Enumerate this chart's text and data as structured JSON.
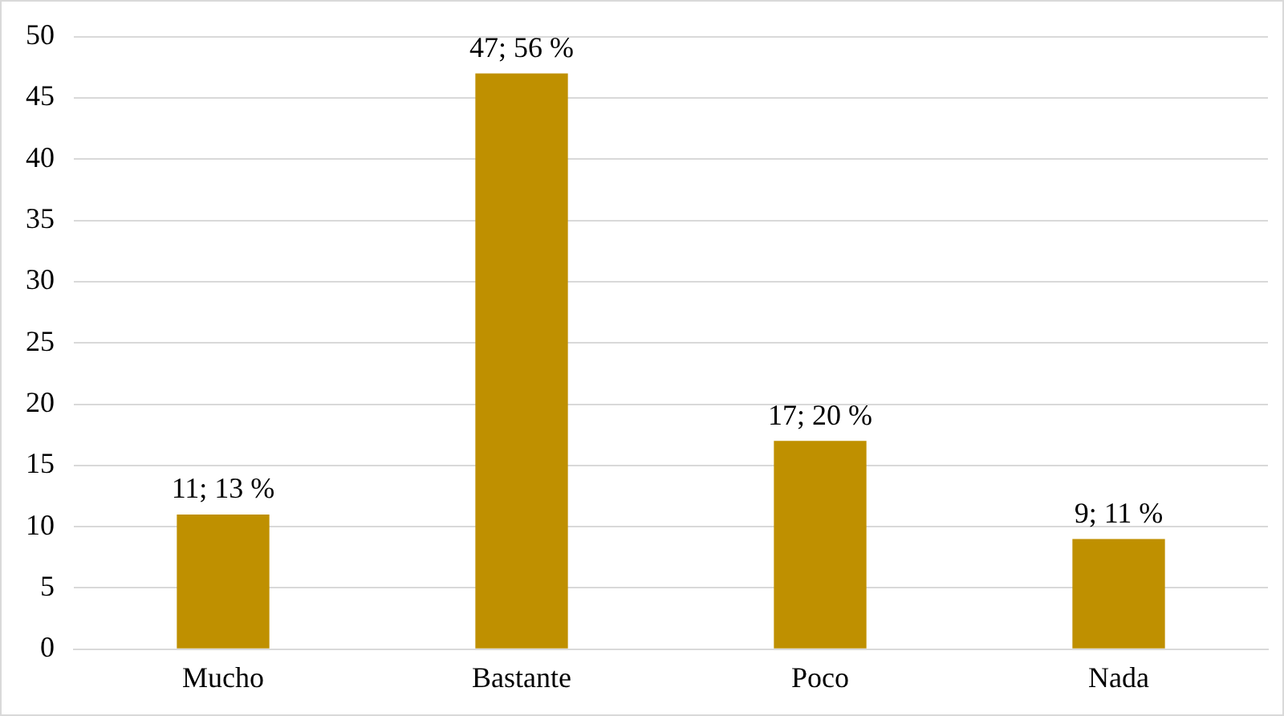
{
  "chart_data": {
    "type": "bar",
    "categories": [
      "Mucho",
      "Bastante",
      "Poco",
      "Nada"
    ],
    "values": [
      11,
      47,
      17,
      9
    ],
    "value_labels": [
      "11; 13 %",
      "47; 56 %",
      "17; 20 %",
      "9; 11 %"
    ],
    "color": "#bf9000",
    "ylim": [
      0,
      50
    ],
    "yticks": [
      0,
      5,
      10,
      15,
      20,
      25,
      30,
      35,
      40,
      45,
      50
    ],
    "grid": "y",
    "legend": false
  }
}
